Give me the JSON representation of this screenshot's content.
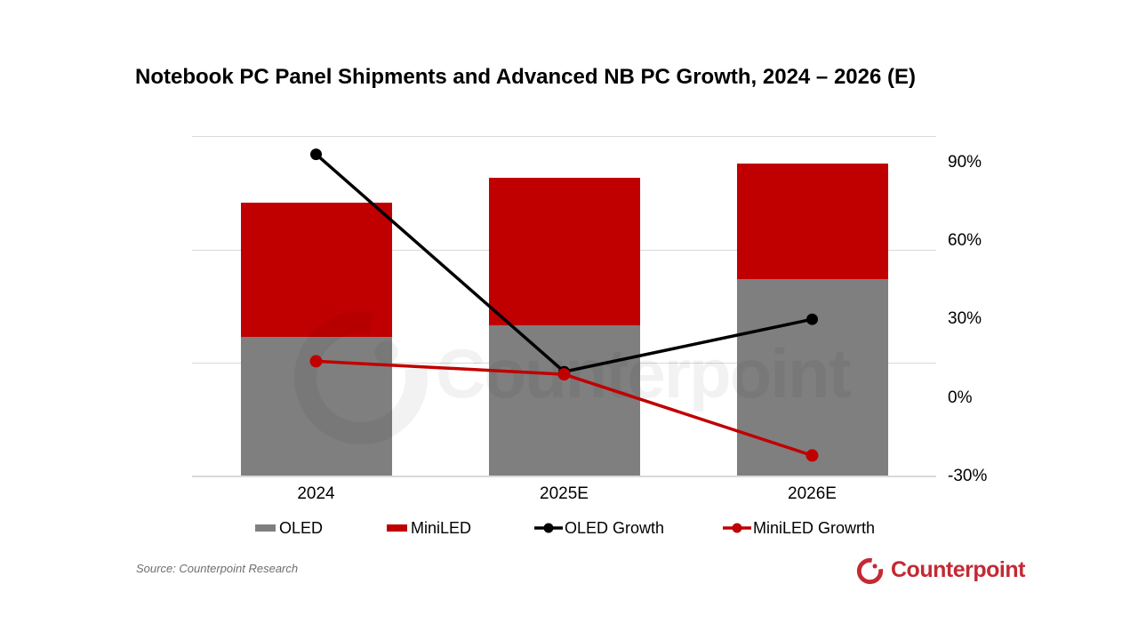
{
  "title": "Notebook PC Panel Shipments and Advanced NB PC Growth, 2024 – 2026 (E)",
  "source_note": "Source: Counterpoint Research",
  "watermark": {
    "text": "Counterpoint"
  },
  "brand": {
    "text": "Counterpoint"
  },
  "colors": {
    "oled_bar": "#7f7f7f",
    "miniled_bar": "#c00000",
    "oled_growth_line": "#000000",
    "miniled_growth_line": "#c00000",
    "gridline": "#d9d9d9",
    "brand_red": "#c32a34",
    "source_text": "#6e6e6e"
  },
  "legend": {
    "items": [
      {
        "label": "OLED",
        "marker": "square",
        "color": "#7f7f7f"
      },
      {
        "label": "MiniLED",
        "marker": "square",
        "color": "#c00000"
      },
      {
        "label": "OLED Growth",
        "marker": "line-dot",
        "color": "#000000"
      },
      {
        "label": "MiniLED Growrth",
        "marker": "line-dot",
        "color": "#c00000"
      }
    ]
  },
  "chart_data": {
    "type": "combo: stacked bar + line",
    "title": "Notebook PC Panel Shipments and Advanced NB PC Growth, 2024 – 2026 (E)",
    "categories": [
      "2024",
      "2025E",
      "2026E"
    ],
    "bar_series": [
      {
        "name": "OLED",
        "color": "#7f7f7f",
        "values": [
          1.23,
          1.33,
          1.74
        ]
      },
      {
        "name": "MiniLED",
        "color": "#c00000",
        "values": [
          1.18,
          1.3,
          1.02
        ]
      }
    ],
    "bar_values_note": "Left shipment axis is not labeled in the image; bar values are relative units where one gridline interval = 1.0",
    "line_series": [
      {
        "name": "OLED Growth",
        "color": "#000000",
        "unit": "%",
        "values": [
          93,
          10,
          30
        ]
      },
      {
        "name": "MiniLED Growrth",
        "color": "#c00000",
        "unit": "%",
        "values": [
          14,
          9,
          -22
        ]
      }
    ],
    "right_axis": {
      "unit": "%",
      "min": -30,
      "max": 100,
      "ticks": [
        90,
        60,
        30,
        0,
        -30
      ],
      "tick_labels": [
        "90%",
        "60%",
        "30%",
        "0%",
        "-30%"
      ]
    },
    "left_axis": {
      "visible": false,
      "min": 0,
      "max": 3,
      "gridlines": [
        1,
        2,
        3
      ]
    },
    "grid": "horizontal light-gray lines",
    "legend_position": "bottom",
    "xlabel": "",
    "ylabel": ""
  }
}
